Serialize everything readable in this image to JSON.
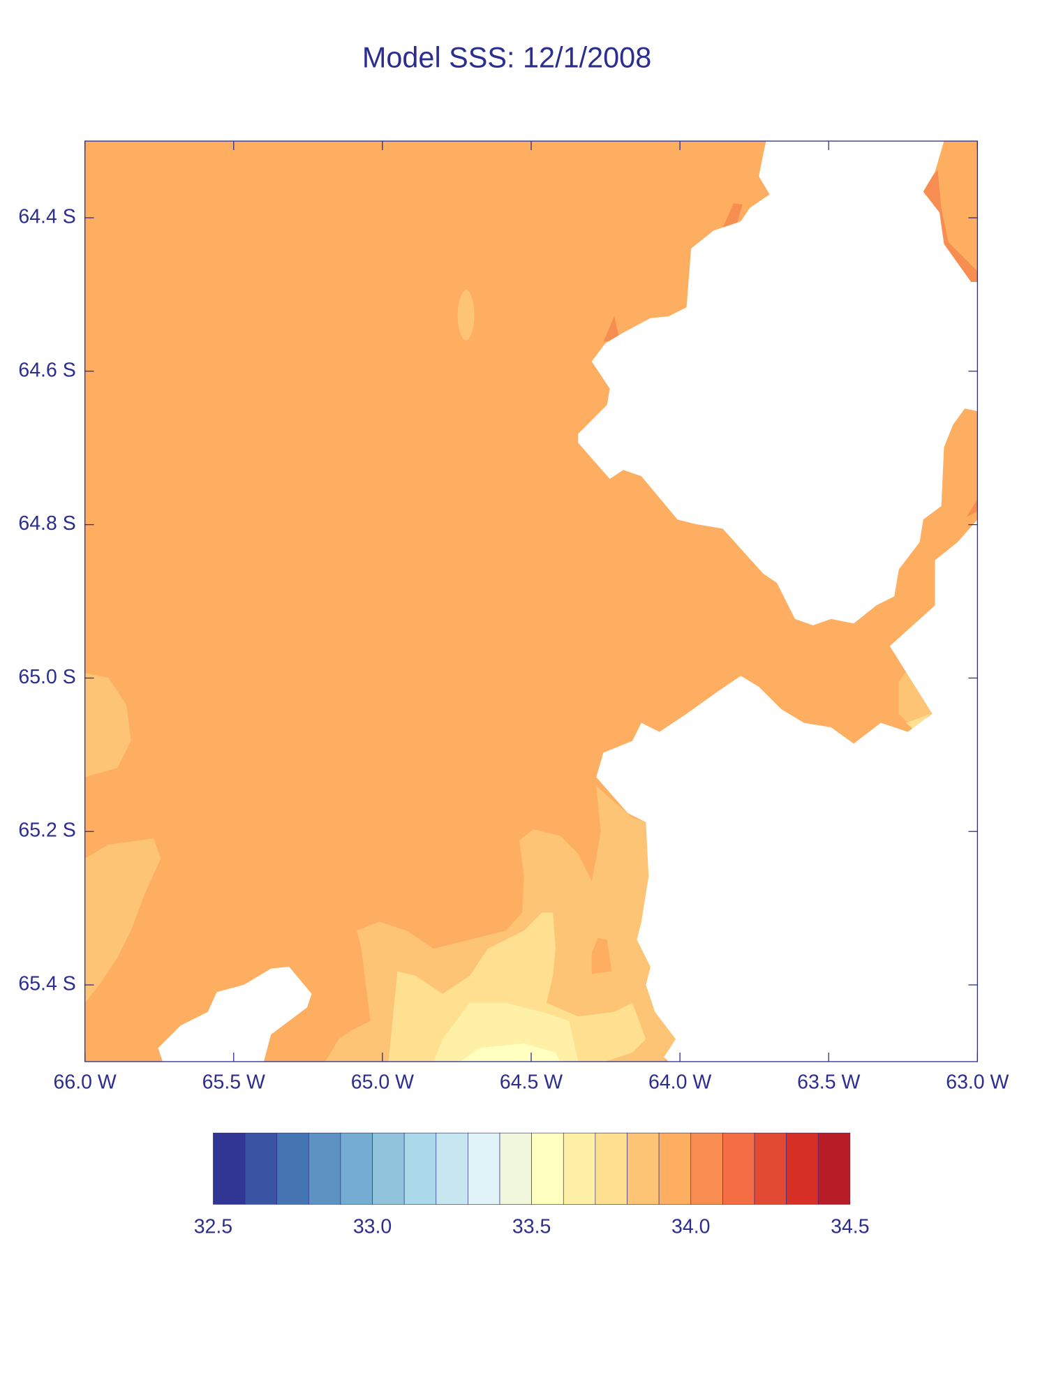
{
  "chart_data": {
    "type": "filled-contour",
    "title": "Model SSS: 12/1/2008",
    "xlim": [
      -66,
      -63
    ],
    "ylim": [
      -65.5,
      -64.3
    ],
    "xticks": [
      {
        "value": -66,
        "label": "66.0 W"
      },
      {
        "value": -65.5,
        "label": "65.5 W"
      },
      {
        "value": -65,
        "label": "65.0 W"
      },
      {
        "value": -64.5,
        "label": "64.5 W"
      },
      {
        "value": -64,
        "label": "64.0 W"
      },
      {
        "value": -63.5,
        "label": "63.5 W"
      },
      {
        "value": -63,
        "label": "63.0 W"
      }
    ],
    "yticks": [
      {
        "value": -64.4,
        "label": "64.4 S"
      },
      {
        "value": -64.6,
        "label": "64.6 S"
      },
      {
        "value": -64.8,
        "label": "64.8 S"
      },
      {
        "value": -65,
        "label": "65.0 S"
      },
      {
        "value": -65.2,
        "label": "65.2 S"
      },
      {
        "value": -65.4,
        "label": "65.4 S"
      }
    ],
    "levels": [
      32.5,
      32.6,
      32.7,
      32.8,
      32.9,
      33.0,
      33.1,
      33.2,
      33.3,
      33.4,
      33.5,
      33.6,
      33.7,
      33.8,
      33.9,
      34.0,
      34.1,
      34.2,
      34.3,
      34.4,
      34.5
    ],
    "colors": [
      "#313695",
      "#3a54a4",
      "#4574b3",
      "#5e92c3",
      "#74add1",
      "#91c3dc",
      "#abd9e9",
      "#c6e6f0",
      "#e0f3f8",
      "#f0f7dc",
      "#ffffbf",
      "#fef0a6",
      "#fee090",
      "#fdc475",
      "#fdae61",
      "#f88d52",
      "#f46d43",
      "#e34a33",
      "#d73027",
      "#b71c27"
    ],
    "colorbar_ticks": [
      32.5,
      {
        "value": 33,
        "label": "33.0"
      },
      33.5,
      {
        "value": 34,
        "label": "34.0"
      },
      34.5
    ],
    "region_values": [
      33.95,
      33.85,
      33.85,
      33.85,
      33.85,
      33.85,
      33.75,
      33.95,
      33.65,
      33.55,
      34.05,
      34.05,
      34.05,
      34.05,
      33.75
    ]
  }
}
